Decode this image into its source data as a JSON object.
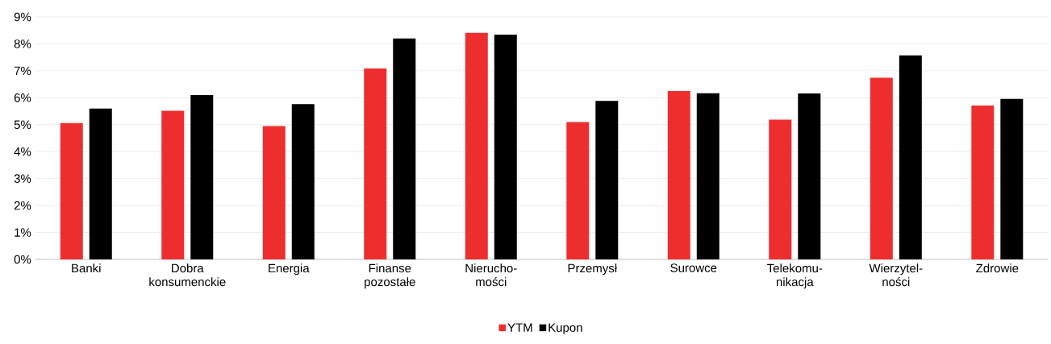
{
  "chart_data": {
    "type": "bar",
    "categories": [
      "Banki",
      "Dobra konsumenckie",
      "Energia",
      "Finanse pozostałe",
      "Nierucho-mości",
      "Przemysł",
      "Surowce",
      "Telekomu-nikacja",
      "Wierzytel-ności",
      "Zdrowie"
    ],
    "series": [
      {
        "name": "YTM",
        "color": "#ee2e2e",
        "values": [
          5.06,
          5.52,
          4.95,
          7.09,
          8.41,
          5.1,
          6.25,
          5.19,
          6.74,
          5.71
        ]
      },
      {
        "name": "Kupon",
        "color": "#000000",
        "values": [
          5.6,
          6.1,
          5.76,
          8.2,
          8.34,
          5.88,
          6.17,
          6.16,
          7.57,
          5.96
        ]
      }
    ],
    "ylim": [
      0,
      9
    ],
    "yticks": [
      {
        "value": 0,
        "label": "0%"
      },
      {
        "value": 1,
        "label": "1%"
      },
      {
        "value": 2,
        "label": "2%"
      },
      {
        "value": 3,
        "label": "3%"
      },
      {
        "value": 4,
        "label": "4%"
      },
      {
        "value": 5,
        "label": "5%"
      },
      {
        "value": 6,
        "label": "6%"
      },
      {
        "value": 7,
        "label": "7%"
      },
      {
        "value": 8,
        "label": "8%"
      },
      {
        "value": 9,
        "label": "9%"
      }
    ],
    "grid": "y",
    "legend": "bottom"
  }
}
